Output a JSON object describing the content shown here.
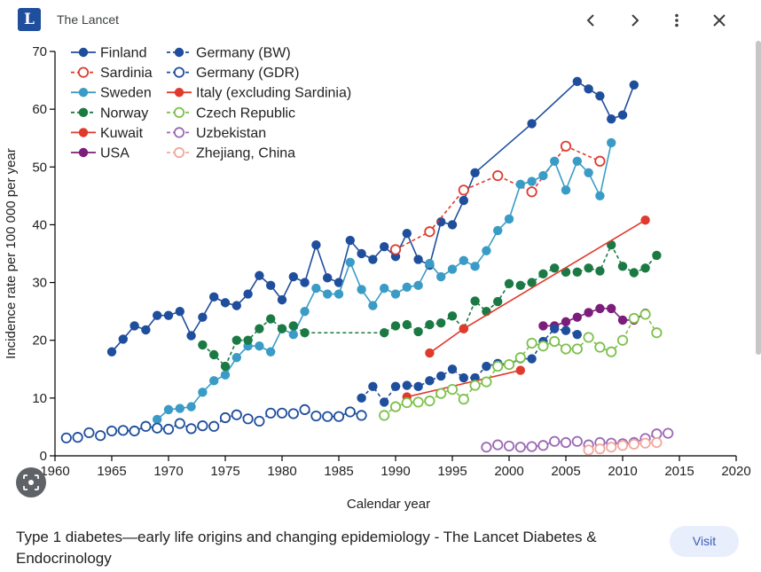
{
  "header": {
    "logo_letter": "L",
    "source": "The Lancet",
    "icons": [
      "chevron-left-icon",
      "chevron-right-icon",
      "more-vert-icon",
      "close-icon"
    ]
  },
  "chart_data": {
    "type": "line",
    "title": "",
    "xlabel": "Calendar year",
    "ylabel": "Incidence rate per 100 000 per year",
    "xlim": [
      1960,
      2020
    ],
    "ylim": [
      0,
      70
    ],
    "xticks": [
      1960,
      1965,
      1970,
      1975,
      1980,
      1985,
      1990,
      1995,
      2000,
      2005,
      2010,
      2015,
      2020
    ],
    "yticks": [
      0,
      10,
      20,
      30,
      40,
      50,
      60,
      70
    ],
    "grid": false,
    "legend_position": "top-left",
    "series": [
      {
        "name": "Finland",
        "color": "#1f4e9c",
        "marker": "filled",
        "line": "solid",
        "x": [
          1965,
          1966,
          1967,
          1968,
          1969,
          1970,
          1971,
          1972,
          1973,
          1974,
          1975,
          1976,
          1977,
          1978,
          1979,
          1980,
          1981,
          1982,
          1983,
          1984,
          1985,
          1986,
          1987,
          1988,
          1989,
          1990,
          1991,
          1992,
          1993,
          1994,
          1995,
          1996,
          1997,
          2002,
          2006,
          2007,
          2008,
          2009,
          2010,
          2011
        ],
        "y": [
          18,
          20.2,
          22.5,
          21.8,
          24.3,
          24.3,
          25,
          20.8,
          24,
          27.5,
          26.5,
          26,
          28,
          31.2,
          29.5,
          27,
          31,
          30,
          36.5,
          30.8,
          30,
          37.3,
          35,
          34,
          36.2,
          34.5,
          38.5,
          34,
          33,
          40.5,
          40,
          44.2,
          49,
          57.5,
          64.8,
          63.5,
          62.3,
          58.3,
          59,
          64.2
        ]
      },
      {
        "name": "Sardinia",
        "color": "#e03a2e",
        "marker": "open",
        "line": "dashed",
        "x": [
          1990,
          1993,
          1996,
          1999,
          2002,
          2005,
          2008
        ],
        "y": [
          35.7,
          38.8,
          46,
          48.5,
          45.7,
          53.6,
          51
        ]
      },
      {
        "name": "Sweden",
        "color": "#3a9cc6",
        "marker": "filled",
        "line": "solid",
        "x": [
          1969,
          1970,
          1971,
          1972,
          1973,
          1974,
          1975,
          1976,
          1977,
          1978,
          1979,
          1980,
          1981,
          1982,
          1983,
          1984,
          1985,
          1986,
          1987,
          1988,
          1989,
          1990,
          1991,
          1992,
          1993,
          1994,
          1995,
          1996,
          1997,
          1998,
          1999,
          2000,
          2001,
          2002,
          2003,
          2004,
          2005,
          2006,
          2007,
          2008,
          2009
        ],
        "y": [
          6.3,
          8,
          8.2,
          8.5,
          11,
          13,
          14,
          17,
          19,
          19,
          18,
          22,
          21,
          25,
          29,
          28,
          28,
          33.5,
          28.8,
          26,
          29,
          28,
          29.2,
          29.5,
          33.3,
          31,
          32.3,
          33.8,
          32.8,
          35.5,
          39,
          41,
          47,
          47.5,
          48.5,
          51,
          46,
          51,
          49,
          45,
          54.2
        ]
      },
      {
        "name": "Norway",
        "color": "#1b7a43",
        "marker": "filled",
        "line": "dashed",
        "x": [
          1973,
          1974,
          1975,
          1976,
          1977,
          1978,
          1979,
          1980,
          1981,
          1982,
          1989,
          1990,
          1991,
          1992,
          1993,
          1994,
          1995,
          1996,
          1997,
          1998,
          1999,
          2000,
          2001,
          2002,
          2003,
          2004,
          2005,
          2006,
          2007,
          2008,
          2009,
          2010,
          2011,
          2012,
          2013
        ],
        "y": [
          19.2,
          17.5,
          15.5,
          20,
          20,
          22,
          23.7,
          22,
          22.5,
          21.3,
          21.3,
          22.5,
          22.7,
          21.5,
          22.7,
          23,
          24.2,
          22,
          26.8,
          25,
          26.7,
          29.8,
          29.5,
          30,
          31.5,
          32.5,
          31.8,
          31.8,
          32.5,
          32,
          36.5,
          32.8,
          31.7,
          32.5,
          34.7
        ]
      },
      {
        "name": "Kuwait",
        "color": "#e03a2e",
        "marker": "filled",
        "line": "solid",
        "x": [
          1993,
          1996,
          2012
        ],
        "y": [
          17.8,
          22,
          40.8
        ]
      },
      {
        "name": "USA",
        "color": "#7b1d7b",
        "marker": "filled",
        "line": "solid",
        "x": [
          2003,
          2004,
          2005,
          2006,
          2007,
          2008,
          2009,
          2010,
          2011,
          2012
        ],
        "y": [
          22.5,
          22.5,
          23.2,
          24,
          24.8,
          25.5,
          25.5,
          23.5,
          23.5,
          24.7
        ]
      },
      {
        "name": "Germany (BW)",
        "color": "#1f4e9c",
        "marker": "filled",
        "line": "dashed",
        "x": [
          1987,
          1988,
          1989,
          1990,
          1991,
          1992,
          1993,
          1994,
          1995,
          1996,
          1997,
          1998,
          1999,
          2000,
          2001,
          2002,
          2003,
          2004,
          2005,
          2006
        ],
        "y": [
          10,
          12,
          9.3,
          12,
          12.2,
          12,
          13,
          13.8,
          15,
          13.5,
          13.5,
          15.5,
          16,
          15.8,
          16.8,
          16.8,
          19.8,
          22,
          21.7,
          21
        ]
      },
      {
        "name": "Germany (GDR)",
        "color": "#1f4e9c",
        "marker": "open",
        "line": "dashed",
        "x": [
          1961,
          1962,
          1963,
          1964,
          1965,
          1966,
          1967,
          1968,
          1969,
          1970,
          1971,
          1972,
          1973,
          1974,
          1975,
          1976,
          1977,
          1978,
          1979,
          1980,
          1981,
          1982,
          1983,
          1984,
          1985,
          1986,
          1987
        ],
        "y": [
          3.1,
          3.2,
          4,
          3.5,
          4.3,
          4.4,
          4.3,
          5.1,
          4.8,
          4.6,
          5.6,
          4.7,
          5.2,
          5.1,
          6.6,
          7.1,
          6.4,
          6,
          7.4,
          7.4,
          7.3,
          8,
          6.9,
          6.8,
          6.8,
          7.6,
          7
        ]
      },
      {
        "name": "Italy (excluding Sardinia)",
        "color": "#e03a2e",
        "marker": "filled",
        "line": "solid",
        "x": [
          1991,
          2001
        ],
        "y": [
          10.2,
          14.8
        ]
      },
      {
        "name": "Czech Republic",
        "color": "#7cc04a",
        "marker": "open",
        "line": "dashed",
        "x": [
          1989,
          1990,
          1991,
          1992,
          1993,
          1994,
          1995,
          1996,
          1997,
          1998,
          1999,
          2000,
          2001,
          2002,
          2003,
          2004,
          2005,
          2006,
          2007,
          2008,
          2009,
          2010,
          2011,
          2012,
          2013
        ],
        "y": [
          7,
          8.5,
          9.2,
          9.3,
          9.5,
          10.8,
          11.5,
          9.8,
          12.2,
          12.8,
          15.5,
          15.8,
          17,
          19.5,
          19,
          19.8,
          18.5,
          18.5,
          20.5,
          18.8,
          18,
          20,
          23.8,
          24.5,
          21.3
        ]
      },
      {
        "name": "Uzbekistan",
        "color": "#9b68b4",
        "marker": "open",
        "line": "dashed",
        "x": [
          1998,
          1999,
          2000,
          2001,
          2002,
          2003,
          2004,
          2005,
          2006,
          2007,
          2008,
          2009,
          2010,
          2011,
          2012,
          2013,
          2014
        ],
        "y": [
          1.5,
          1.9,
          1.7,
          1.5,
          1.6,
          1.8,
          2.5,
          2.3,
          2.5,
          1.9,
          2.3,
          2.2,
          2.1,
          2.3,
          3,
          3.8,
          3.9
        ]
      },
      {
        "name": "Zhejiang, China",
        "color": "#f2a79d",
        "marker": "open",
        "line": "dashed",
        "x": [
          2007,
          2008,
          2009,
          2010,
          2011,
          2012,
          2013
        ],
        "y": [
          1,
          1.2,
          1.5,
          1.8,
          2,
          2.2,
          2.3
        ]
      }
    ]
  },
  "caption": "Type 1 diabetes—early life origins and changing epidemiology - The Lancet Diabetes & Endocrinology",
  "visit_label": "Visit"
}
